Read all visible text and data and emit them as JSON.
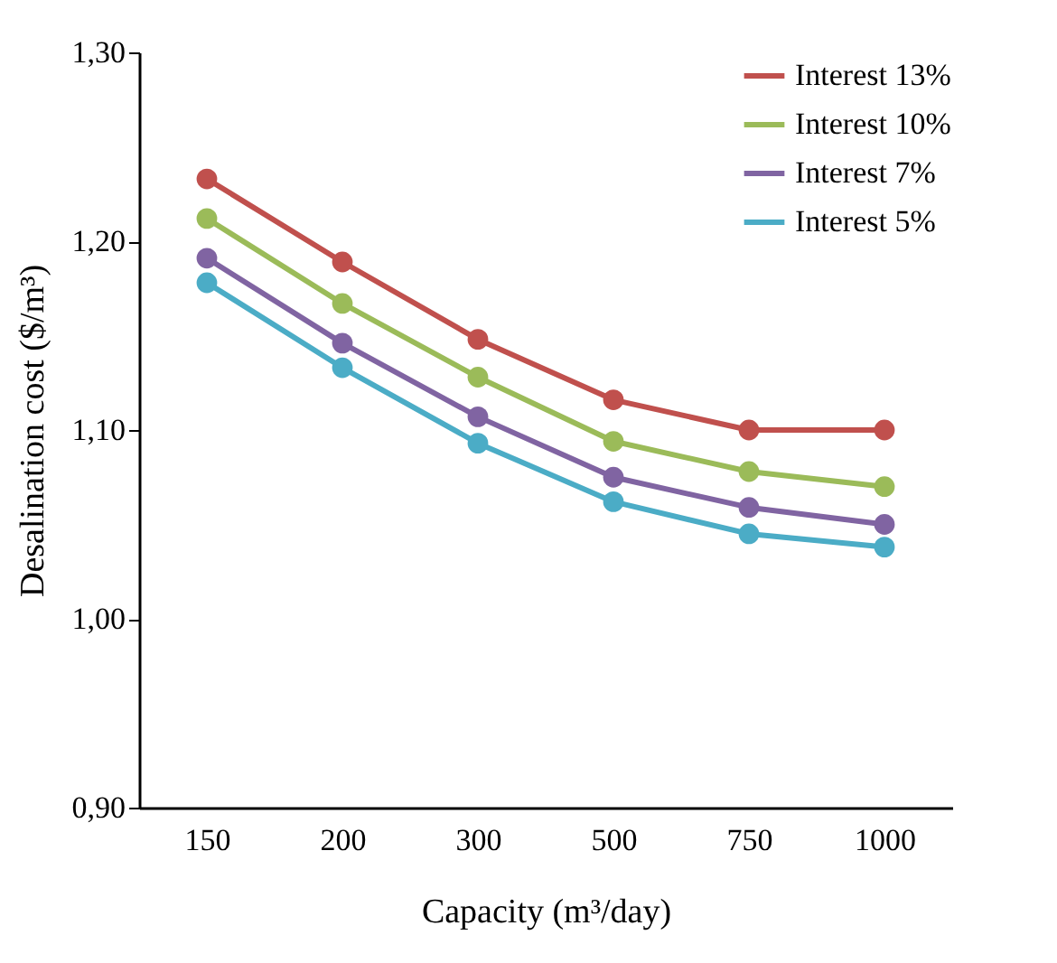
{
  "chart_data": {
    "type": "line",
    "xlabel": "Capacity (m³/day)",
    "ylabel": "Desalination cost ($/m³)",
    "categories": [
      "150",
      "200",
      "300",
      "500",
      "750",
      "1000"
    ],
    "series": [
      {
        "name": "Interest 13%",
        "color": "#c0504d",
        "values": [
          1.233,
          1.189,
          1.148,
          1.116,
          1.1,
          1.1
        ]
      },
      {
        "name": "Interest 10%",
        "color": "#9bbb59",
        "values": [
          1.212,
          1.167,
          1.128,
          1.094,
          1.078,
          1.07
        ]
      },
      {
        "name": "Interest 7%",
        "color": "#8064a2",
        "values": [
          1.191,
          1.146,
          1.107,
          1.075,
          1.059,
          1.05
        ]
      },
      {
        "name": "Interest 5%",
        "color": "#4bacc6",
        "values": [
          1.178,
          1.133,
          1.093,
          1.062,
          1.045,
          1.038
        ]
      }
    ],
    "ylim": [
      0.9,
      1.3
    ],
    "yticks": [
      {
        "value": 0.9,
        "label": "0,90"
      },
      {
        "value": 1.0,
        "label": "1,00"
      },
      {
        "value": 1.1,
        "label": "1,10"
      },
      {
        "value": 1.2,
        "label": "1,20"
      },
      {
        "value": 1.3,
        "label": "1,30"
      }
    ],
    "grid": false,
    "legend": "top right",
    "marker": "circle",
    "line_style": "solid"
  }
}
